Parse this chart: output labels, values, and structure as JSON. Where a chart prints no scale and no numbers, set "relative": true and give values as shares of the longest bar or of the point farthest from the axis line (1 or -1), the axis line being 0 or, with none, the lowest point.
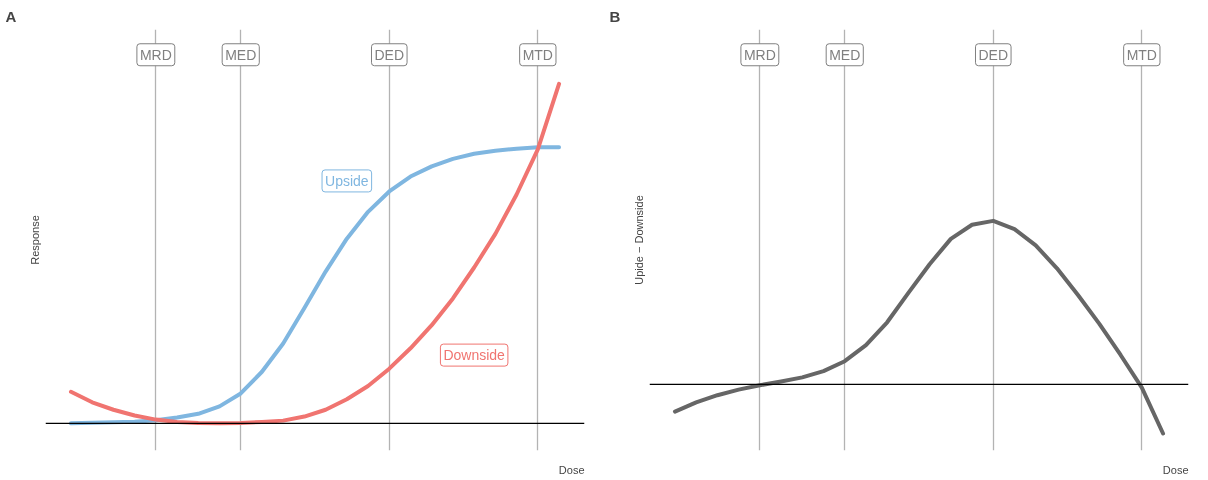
{
  "chart_data": [
    {
      "type": "line",
      "title": "A",
      "ylabel": "Response",
      "xlabel": "Dose",
      "relative": true,
      "legend": false,
      "grid": "x",
      "categories": [
        null,
        null,
        null,
        null,
        "MRD",
        null,
        null,
        null,
        "MED",
        null,
        null,
        null,
        null,
        null,
        null,
        "DED",
        null,
        null,
        null,
        null,
        null,
        null,
        "MTD",
        null
      ],
      "series": [
        {
          "name": "Upside",
          "color": "#7fb6e0",
          "values": [
            0,
            0.002,
            0.003,
            0.005,
            0.009,
            0.017,
            0.028,
            0.05,
            0.088,
            0.152,
            0.235,
            0.34,
            0.447,
            0.544,
            0.623,
            0.683,
            0.727,
            0.757,
            0.779,
            0.794,
            0.803,
            0.809,
            0.813,
            0.813
          ]
        },
        {
          "name": "Downside",
          "color": "#f07470",
          "values": [
            0.093,
            0.062,
            0.04,
            0.023,
            0.011,
            0.004,
            0.001,
            0,
            0.001,
            0.004,
            0.008,
            0.02,
            0.04,
            0.071,
            0.11,
            0.161,
            0.221,
            0.289,
            0.368,
            0.459,
            0.558,
            0.674,
            0.807,
            1.0
          ]
        }
      ]
    },
    {
      "type": "line",
      "title": "B",
      "ylabel": "Upide − Downside",
      "xlabel": "Dose",
      "relative": true,
      "legend": false,
      "grid": "x",
      "categories": [
        null,
        null,
        null,
        null,
        "MRD",
        null,
        null,
        null,
        "MED",
        null,
        null,
        null,
        null,
        null,
        null,
        "DED",
        null,
        null,
        null,
        null,
        null,
        null,
        "MTD",
        null
      ],
      "series": [
        {
          "color": "#666666",
          "values": [
            -0.166,
            -0.11,
            -0.066,
            -0.032,
            -0.005,
            0.018,
            0.043,
            0.081,
            0.142,
            0.24,
            0.38,
            0.56,
            0.735,
            0.89,
            0.976,
            1.0,
            0.95,
            0.85,
            0.71,
            0.545,
            0.37,
            0.18,
            -0.02,
            -0.3
          ]
        }
      ]
    }
  ]
}
